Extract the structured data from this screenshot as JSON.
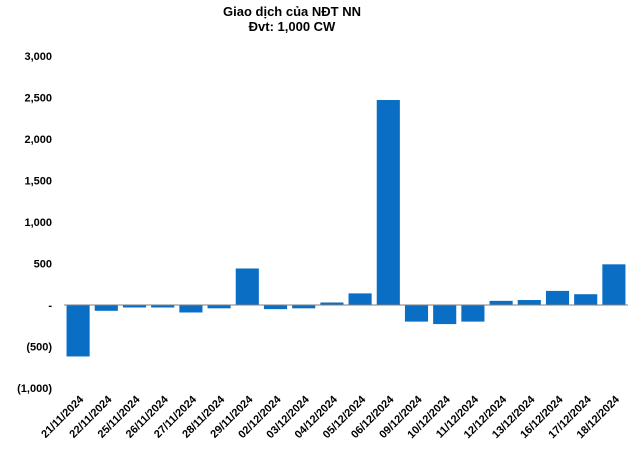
{
  "chart_data": {
    "type": "bar",
    "title": "Giao dịch của NĐT NN",
    "subtitle": "Đvt: 1,000 CW",
    "color": "#0a6fc4",
    "grid": false,
    "legend": "none",
    "ylim": [
      -1000,
      3000
    ],
    "yticks": [
      {
        "value": 3000,
        "label": "3,000"
      },
      {
        "value": 2500,
        "label": "2,500"
      },
      {
        "value": 2000,
        "label": "2,000"
      },
      {
        "value": 1500,
        "label": "1,500"
      },
      {
        "value": 1000,
        "label": "1,000"
      },
      {
        "value": 500,
        "label": "500"
      },
      {
        "value": 0,
        "label": "-"
      },
      {
        "value": -500,
        "label": "(500)"
      },
      {
        "value": -1000,
        "label": "(1,000)"
      }
    ],
    "categories": [
      "21/11/2024",
      "22/11/2024",
      "25/11/2024",
      "26/11/2024",
      "27/11/2024",
      "28/11/2024",
      "29/11/2024",
      "02/12/2024",
      "03/12/2024",
      "04/12/2024",
      "05/12/2024",
      "06/12/2024",
      "09/12/2024",
      "10/12/2024",
      "11/12/2024",
      "12/12/2024",
      "13/12/2024",
      "16/12/2024",
      "17/12/2024",
      "18/12/2024"
    ],
    "values": [
      -620,
      -70,
      -30,
      -30,
      -90,
      -40,
      440,
      -50,
      -40,
      30,
      140,
      2470,
      -200,
      -230,
      -200,
      50,
      60,
      170,
      130,
      490
    ]
  }
}
